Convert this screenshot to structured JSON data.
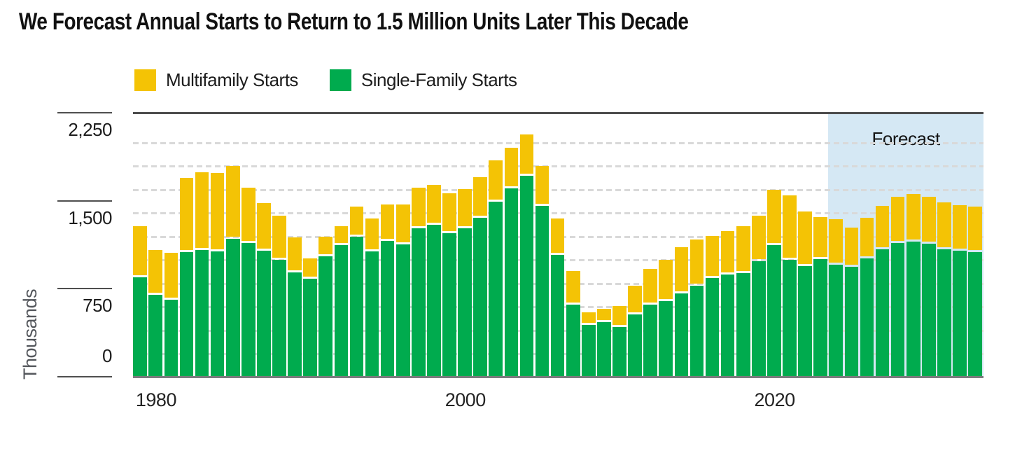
{
  "title": "We Forecast Annual Starts to Return to 1.5 Million Units Later This Decade",
  "legend": [
    {
      "label": "Multifamily Starts",
      "color": "#f4c305"
    },
    {
      "label": "Single-Family Starts",
      "color": "#00ab4e"
    }
  ],
  "y_axis": {
    "title": "Thousands",
    "tick_labels": [
      "2,250",
      "1,500",
      "750",
      "0"
    ],
    "tick_values": [
      2250,
      1500,
      750,
      0
    ]
  },
  "x_axis": {
    "tick_labels": [
      "1980",
      "2000",
      "2020"
    ],
    "tick_years": [
      1980,
      2000,
      2020
    ]
  },
  "forecast": {
    "label": "Forecast",
    "region_color": "#d5e8f4",
    "start_year": 2025,
    "end_year": 2034
  },
  "chart_data": {
    "type": "bar",
    "stacked": true,
    "title": "We Forecast Annual Starts to Return to 1.5 Million Units Later This Decade",
    "ylabel": "Thousands",
    "units": "thousands of housing starts per year",
    "ylim": [
      0,
      2400
    ],
    "gridline_interval": 200,
    "grid": "dashed-horizontal",
    "legend_position": "top",
    "stack_order": [
      "Single-Family Starts",
      "Multifamily Starts"
    ],
    "forecast_years": [
      2025,
      2034
    ],
    "categories": [
      1980,
      1981,
      1982,
      1983,
      1984,
      1985,
      1986,
      1987,
      1988,
      1989,
      1990,
      1991,
      1992,
      1993,
      1994,
      1995,
      1996,
      1997,
      1998,
      1999,
      2000,
      2001,
      2002,
      2003,
      2004,
      2005,
      2006,
      2007,
      2008,
      2009,
      2010,
      2011,
      2012,
      2013,
      2014,
      2015,
      2016,
      2017,
      2018,
      2019,
      2020,
      2021,
      2022,
      2023,
      2024,
      2025,
      2026,
      2027,
      2028,
      2029,
      2030,
      2031,
      2032,
      2033,
      2034
    ],
    "series": [
      {
        "name": "Single-Family Starts",
        "color": "#00ab4e",
        "values": [
          852,
          705,
          663,
          1068,
          1084,
          1072,
          1179,
          1146,
          1081,
          1003,
          895,
          840,
          1030,
          1126,
          1198,
          1076,
          1161,
          1134,
          1271,
          1302,
          1231,
          1273,
          1359,
          1499,
          1611,
          1716,
          1465,
          1046,
          622,
          445,
          471,
          431,
          535,
          618,
          648,
          715,
          782,
          849,
          876,
          888,
          991,
          1127,
          1005,
          947,
          1010,
          960,
          940,
          1015,
          1095,
          1145,
          1160,
          1140,
          1090,
          1080,
          1070
        ]
      },
      {
        "name": "Multifamily Starts",
        "color": "#f4c305",
        "values": [
          440,
          379,
          399,
          635,
          666,
          670,
          626,
          474,
          407,
          373,
          298,
          174,
          170,
          162,
          259,
          278,
          316,
          340,
          346,
          339,
          338,
          330,
          346,
          349,
          345,
          352,
          336,
          309,
          284,
          109,
          116,
          178,
          246,
          307,
          355,
          397,
          392,
          354,
          374,
          402,
          389,
          474,
          548,
          466,
          355,
          390,
          335,
          345,
          365,
          395,
          405,
          400,
          400,
          390,
          385
        ]
      }
    ]
  }
}
